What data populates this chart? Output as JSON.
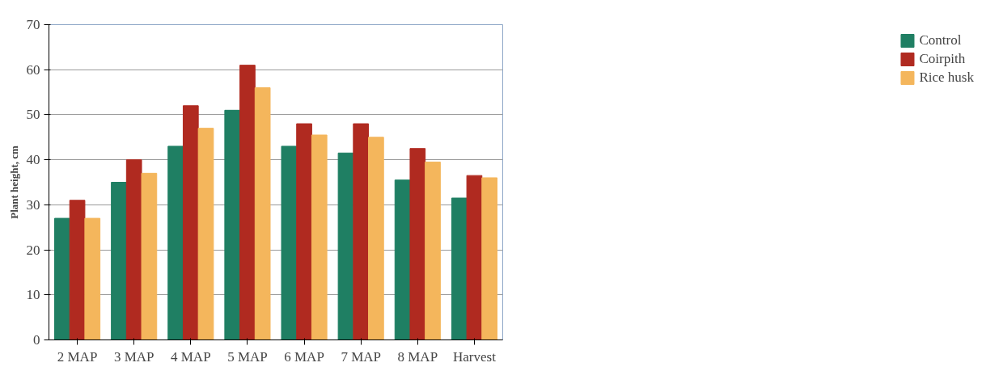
{
  "chart_data": {
    "type": "bar",
    "ylabel": "Plant height, cm",
    "categories": [
      "2 MAP",
      "3 MAP",
      "4 MAP",
      "5 MAP",
      "6 MAP",
      "7 MAP",
      "8 MAP",
      "Harvest"
    ],
    "series": [
      {
        "name": "Control",
        "color": "#1f7f63",
        "values": [
          27,
          35,
          43,
          51,
          43,
          41.5,
          35.5,
          31.5
        ]
      },
      {
        "name": "Coirpith",
        "color": "#b02a20",
        "values": [
          31,
          40,
          52,
          61,
          48,
          48,
          42.5,
          36.5
        ]
      },
      {
        "name": "Rice husk",
        "color": "#f4b65c",
        "values": [
          27,
          37,
          47,
          56,
          45.5,
          45,
          39.5,
          36
        ]
      }
    ],
    "ylim": [
      0,
      70
    ],
    "yticks": [
      0,
      10,
      20,
      30,
      40,
      50,
      60,
      70
    ],
    "grid": "y",
    "legend": "right"
  }
}
